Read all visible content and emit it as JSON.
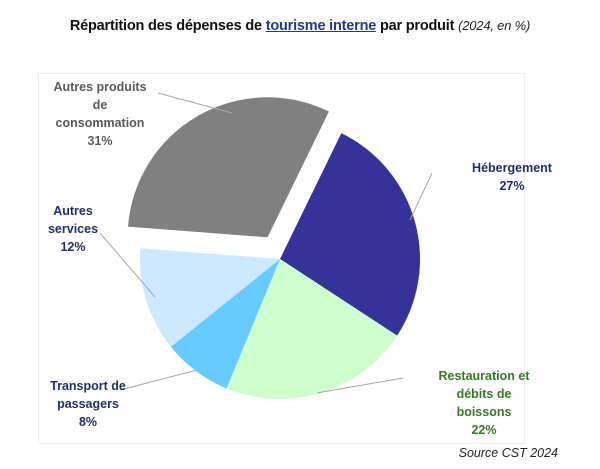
{
  "chart_data": {
    "type": "pie",
    "title": "Répartition des dépenses de tourisme interne par produit",
    "title_parts": {
      "before": "Répartition des dépenses de ",
      "link": "tourisme interne",
      "after": " par produit",
      "subtitle": "(2024, en %)"
    },
    "unit": "%",
    "slices": [
      {
        "label": "Hébergement",
        "lines": [
          "Hébergement"
        ],
        "value": 27,
        "value_label": "27%",
        "color": "#333399",
        "label_color": "#1f2f6e",
        "exploded": false
      },
      {
        "label": "Restauration et débits de boissons",
        "lines": [
          "Restauration et",
          "débits de",
          "boissons"
        ],
        "value": 22,
        "value_label": "22%",
        "color": "#ccffcc",
        "label_color": "#2e7d1e",
        "exploded": false
      },
      {
        "label": "Transport de passagers",
        "lines": [
          "Transport de",
          "passagers"
        ],
        "value": 8,
        "value_label": "8%",
        "color": "#66ccff",
        "label_color": "#1f2f6e",
        "exploded": false
      },
      {
        "label": "Autres services",
        "lines": [
          "Autres",
          "services"
        ],
        "value": 12,
        "value_label": "12%",
        "color": "#cce9ff",
        "label_color": "#1f2f6e",
        "exploded": false
      },
      {
        "label": "Autres produits de consommation",
        "lines": [
          "Autres produits",
          "de",
          "consommation"
        ],
        "value": 31,
        "value_label": "31%",
        "color": "#808080",
        "label_color": "#595959",
        "exploded": true
      }
    ],
    "source": "Source CST 2024"
  }
}
